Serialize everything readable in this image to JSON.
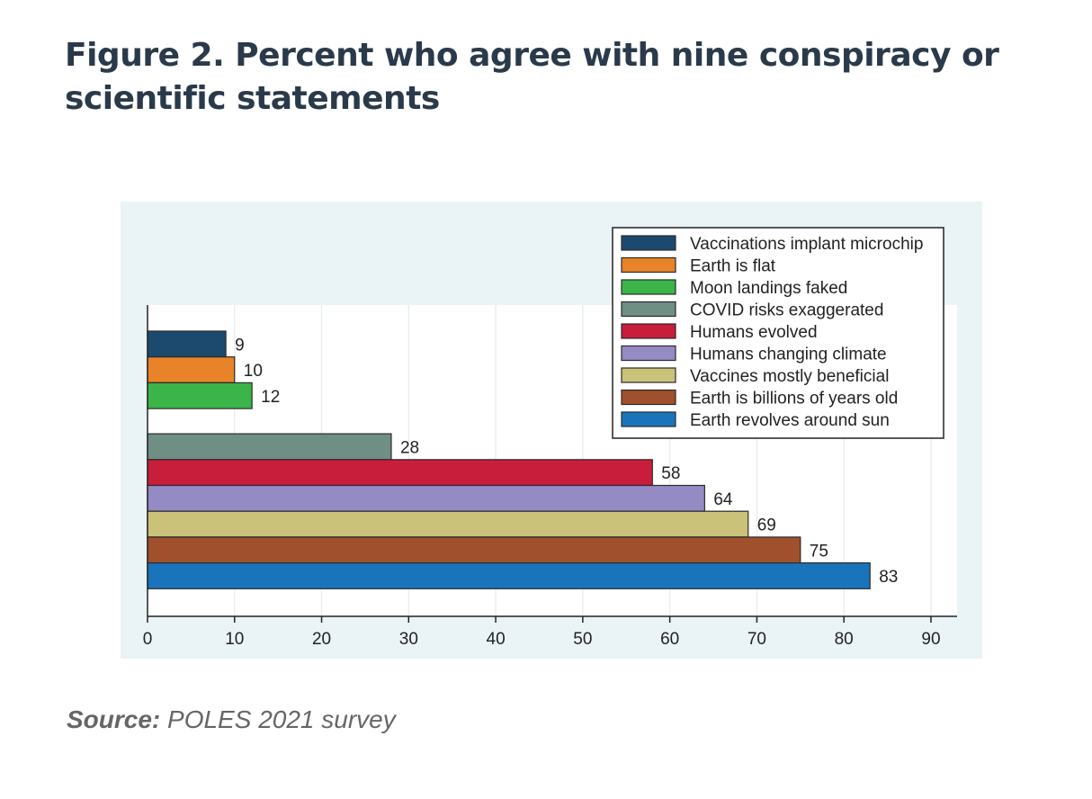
{
  "figure": {
    "title": "Figure 2. Percent who agree with nine conspiracy or scientific statements",
    "source_label": "Source:",
    "source_text": "POLES 2021 survey"
  },
  "chart_data": {
    "type": "bar",
    "orientation": "horizontal",
    "xlim": [
      0,
      93
    ],
    "xticks": [
      0,
      10,
      20,
      30,
      40,
      50,
      60,
      70,
      80,
      90
    ],
    "grid": true,
    "legend_position": "top-right",
    "groups": [
      [
        {
          "name": "Vaccinations implant microchip",
          "value": 9,
          "color": "#1c4a6e"
        },
        {
          "name": "Earth is flat",
          "value": 10,
          "color": "#e8832a"
        },
        {
          "name": "Moon landings faked",
          "value": 12,
          "color": "#3bb449"
        }
      ],
      [
        {
          "name": "COVID risks exaggerated",
          "value": 28,
          "color": "#6f8f84"
        },
        {
          "name": "Humans evolved",
          "value": 58,
          "color": "#c81d3b"
        },
        {
          "name": "Humans changing climate",
          "value": 64,
          "color": "#958bc4"
        },
        {
          "name": "Vaccines mostly beneficial",
          "value": 69,
          "color": "#cbc27a"
        },
        {
          "name": "Earth is billions of years old",
          "value": 75,
          "color": "#a0502c"
        },
        {
          "name": "Earth revolves around sun",
          "value": 83,
          "color": "#1a74bc"
        }
      ]
    ]
  }
}
